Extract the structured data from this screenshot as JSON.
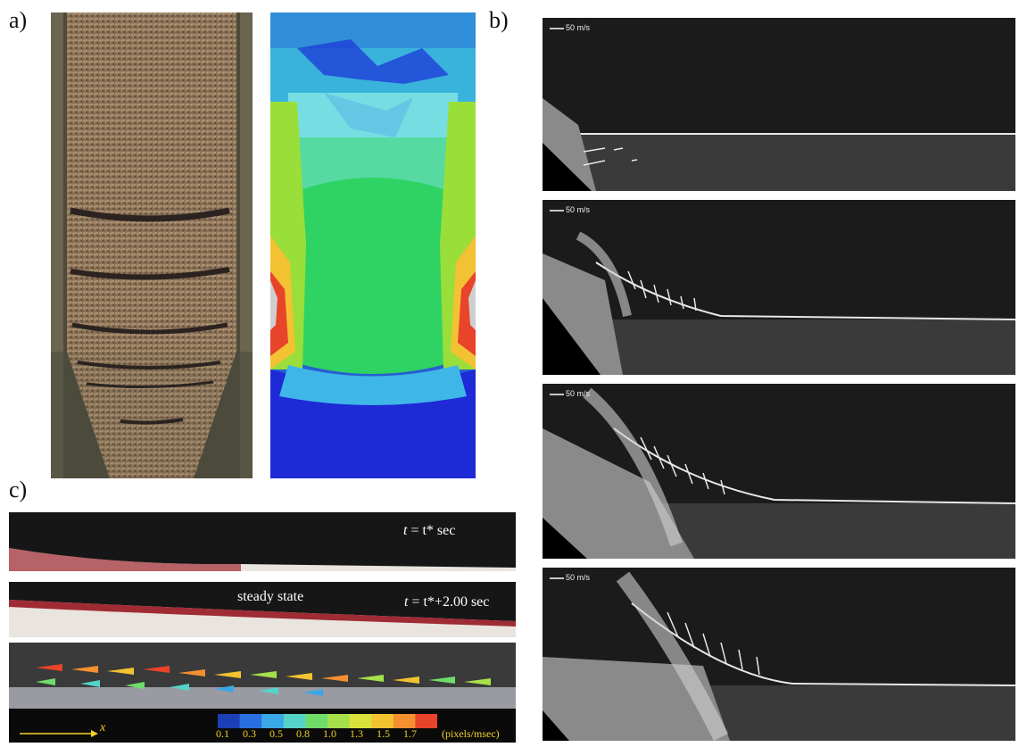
{
  "labels": {
    "a": "a)",
    "b": "b)",
    "c": "c)"
  },
  "panel_b": {
    "frames": [
      {
        "scale": "50 m/s"
      },
      {
        "scale": "50 m/s"
      },
      {
        "scale": "50 m/s"
      },
      {
        "scale": "50 m/s"
      }
    ]
  },
  "panel_c": {
    "strip1_time_var": "t",
    "strip1_time_rest": " = t* sec",
    "strip2_label": "steady state",
    "strip2_time_var": "t",
    "strip2_time_rest": " = t*+2.00 sec",
    "axis_label": "x",
    "colorbar_ticks": [
      "0.1",
      "0.3",
      "0.5",
      "0.8",
      "1.0",
      "1.3",
      "1.5",
      "1.7"
    ],
    "colorbar_unit": "(pixels/msec)",
    "colorbar_colors": [
      "#1d3fb5",
      "#2a6fe0",
      "#3aa8e6",
      "#55d3c8",
      "#6fdc6a",
      "#a6e04a",
      "#d9e23a",
      "#f2c233",
      "#f49030",
      "#e8442a"
    ]
  }
}
